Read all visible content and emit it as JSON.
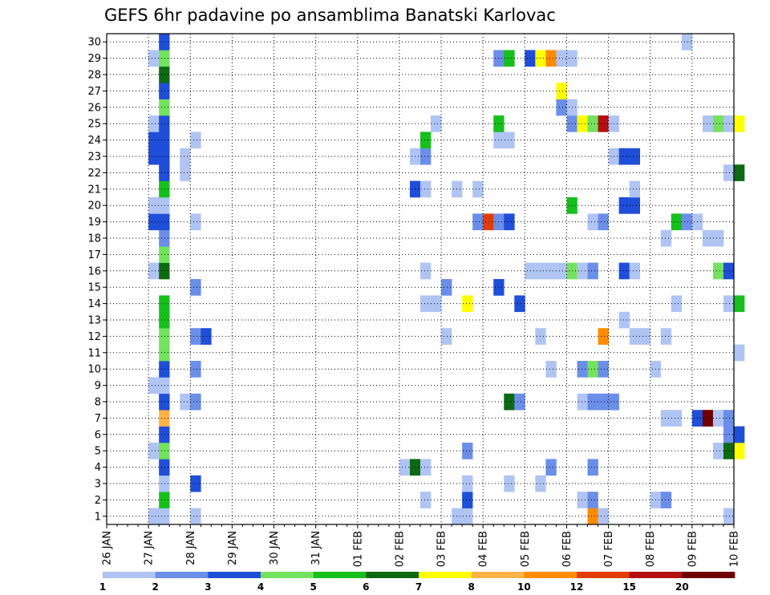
{
  "chart_data": {
    "type": "heatmap",
    "title": "GEFS 6hr padavine po ansamblima Banatski Karlovac",
    "xlabel": "",
    "ylabel": "",
    "x_tick_labels": [
      "26 JAN",
      "27 JAN",
      "28 JAN",
      "29 JAN",
      "30 JAN",
      "31 JAN",
      "01 FEB",
      "02 FEB",
      "03 FEB",
      "04 FEB",
      "05 FEB",
      "06 FEB",
      "07 FEB",
      "08 FEB",
      "09 FEB",
      "10 FEB"
    ],
    "y_tick_labels": [
      "1",
      "2",
      "3",
      "4",
      "5",
      "6",
      "7",
      "8",
      "9",
      "10",
      "11",
      "12",
      "13",
      "14",
      "15",
      "16",
      "17",
      "18",
      "19",
      "20",
      "21",
      "22",
      "23",
      "24",
      "25",
      "26",
      "27",
      "28",
      "29",
      "30"
    ],
    "member_range": [
      0,
      30
    ],
    "step_hours": 6,
    "grid": true,
    "legend_position": "bottom",
    "legend_values": [
      "1",
      "2",
      "3",
      "4",
      "5",
      "6",
      "7",
      "8",
      "10",
      "12",
      "15",
      "20"
    ],
    "legend_colors": [
      "#b0c4f4",
      "#6b8ee8",
      "#1f4ed8",
      "#74e25e",
      "#16c01c",
      "#0e6a12",
      "#ffff00",
      "#ffb347",
      "#ff8c00",
      "#e23c0b",
      "#b51010",
      "#6e0000"
    ],
    "cells": [
      {
        "m": 0,
        "s": 4,
        "c": 1
      },
      {
        "m": 0,
        "s": 5,
        "c": 1
      },
      {
        "m": 0,
        "s": 8,
        "c": 1
      },
      {
        "m": 0,
        "s": 33,
        "c": 1
      },
      {
        "m": 0,
        "s": 34,
        "c": 1
      },
      {
        "m": 0,
        "s": 46,
        "c": 9
      },
      {
        "m": 0,
        "s": 47,
        "c": 1
      },
      {
        "m": 0,
        "s": 59,
        "c": 1
      },
      {
        "m": 1,
        "s": 5,
        "c": 5
      },
      {
        "m": 1,
        "s": 30,
        "c": 1
      },
      {
        "m": 1,
        "s": 34,
        "c": 3
      },
      {
        "m": 1,
        "s": 45,
        "c": 1
      },
      {
        "m": 1,
        "s": 46,
        "c": 2
      },
      {
        "m": 1,
        "s": 52,
        "c": 1
      },
      {
        "m": 1,
        "s": 53,
        "c": 2
      },
      {
        "m": 2,
        "s": 5,
        "c": 1
      },
      {
        "m": 2,
        "s": 8,
        "c": 3
      },
      {
        "m": 2,
        "s": 34,
        "c": 1
      },
      {
        "m": 2,
        "s": 38,
        "c": 1
      },
      {
        "m": 2,
        "s": 41,
        "c": 1
      },
      {
        "m": 3,
        "s": 5,
        "c": 3
      },
      {
        "m": 3,
        "s": 28,
        "c": 1
      },
      {
        "m": 3,
        "s": 29,
        "c": 6
      },
      {
        "m": 3,
        "s": 30,
        "c": 1
      },
      {
        "m": 3,
        "s": 42,
        "c": 2
      },
      {
        "m": 3,
        "s": 46,
        "c": 2
      },
      {
        "m": 4,
        "s": 4,
        "c": 1
      },
      {
        "m": 4,
        "s": 5,
        "c": 4
      },
      {
        "m": 4,
        "s": 34,
        "c": 2
      },
      {
        "m": 4,
        "s": 58,
        "c": 1
      },
      {
        "m": 4,
        "s": 59,
        "c": 6
      },
      {
        "m": 4,
        "s": 60,
        "c": 7
      },
      {
        "m": 5,
        "s": 5,
        "c": 3
      },
      {
        "m": 5,
        "s": 59,
        "c": 2
      },
      {
        "m": 5,
        "s": 60,
        "c": 3
      },
      {
        "m": 6,
        "s": 5,
        "c": 8
      },
      {
        "m": 6,
        "s": 53,
        "c": 1
      },
      {
        "m": 6,
        "s": 54,
        "c": 1
      },
      {
        "m": 6,
        "s": 56,
        "c": 3
      },
      {
        "m": 6,
        "s": 57,
        "c": 12
      },
      {
        "m": 6,
        "s": 58,
        "c": 1
      },
      {
        "m": 6,
        "s": 59,
        "c": 2
      },
      {
        "m": 7,
        "s": 5,
        "c": 3
      },
      {
        "m": 7,
        "s": 7,
        "c": 1
      },
      {
        "m": 7,
        "s": 8,
        "c": 2
      },
      {
        "m": 7,
        "s": 38,
        "c": 6
      },
      {
        "m": 7,
        "s": 39,
        "c": 2
      },
      {
        "m": 7,
        "s": 45,
        "c": 1
      },
      {
        "m": 7,
        "s": 46,
        "c": 2
      },
      {
        "m": 7,
        "s": 47,
        "c": 2
      },
      {
        "m": 7,
        "s": 48,
        "c": 2
      },
      {
        "m": 8,
        "s": 4,
        "c": 1
      },
      {
        "m": 8,
        "s": 5,
        "c": 1
      },
      {
        "m": 9,
        "s": 5,
        "c": 3
      },
      {
        "m": 9,
        "s": 8,
        "c": 2
      },
      {
        "m": 9,
        "s": 42,
        "c": 1
      },
      {
        "m": 9,
        "s": 45,
        "c": 2
      },
      {
        "m": 9,
        "s": 46,
        "c": 4
      },
      {
        "m": 9,
        "s": 47,
        "c": 2
      },
      {
        "m": 9,
        "s": 52,
        "c": 1
      },
      {
        "m": 10,
        "s": 5,
        "c": 4
      },
      {
        "m": 10,
        "s": 60,
        "c": 1
      },
      {
        "m": 11,
        "s": 5,
        "c": 4
      },
      {
        "m": 11,
        "s": 8,
        "c": 2
      },
      {
        "m": 11,
        "s": 9,
        "c": 3
      },
      {
        "m": 11,
        "s": 32,
        "c": 1
      },
      {
        "m": 11,
        "s": 41,
        "c": 1
      },
      {
        "m": 11,
        "s": 47,
        "c": 9
      },
      {
        "m": 11,
        "s": 50,
        "c": 1
      },
      {
        "m": 11,
        "s": 51,
        "c": 1
      },
      {
        "m": 11,
        "s": 53,
        "c": 1
      },
      {
        "m": 12,
        "s": 5,
        "c": 5
      },
      {
        "m": 12,
        "s": 49,
        "c": 1
      },
      {
        "m": 13,
        "s": 5,
        "c": 5
      },
      {
        "m": 13,
        "s": 30,
        "c": 1
      },
      {
        "m": 13,
        "s": 31,
        "c": 1
      },
      {
        "m": 13,
        "s": 34,
        "c": 7
      },
      {
        "m": 13,
        "s": 39,
        "c": 3
      },
      {
        "m": 13,
        "s": 54,
        "c": 1
      },
      {
        "m": 13,
        "s": 59,
        "c": 1
      },
      {
        "m": 13,
        "s": 60,
        "c": 5
      },
      {
        "m": 14,
        "s": 8,
        "c": 2
      },
      {
        "m": 14,
        "s": 32,
        "c": 2
      },
      {
        "m": 14,
        "s": 37,
        "c": 3
      },
      {
        "m": 15,
        "s": 4,
        "c": 1
      },
      {
        "m": 15,
        "s": 5,
        "c": 6
      },
      {
        "m": 15,
        "s": 30,
        "c": 1
      },
      {
        "m": 15,
        "s": 40,
        "c": 1
      },
      {
        "m": 15,
        "s": 41,
        "c": 1
      },
      {
        "m": 15,
        "s": 42,
        "c": 1
      },
      {
        "m": 15,
        "s": 43,
        "c": 1
      },
      {
        "m": 15,
        "s": 44,
        "c": 4
      },
      {
        "m": 15,
        "s": 45,
        "c": 1
      },
      {
        "m": 15,
        "s": 46,
        "c": 2
      },
      {
        "m": 15,
        "s": 49,
        "c": 3
      },
      {
        "m": 15,
        "s": 50,
        "c": 1
      },
      {
        "m": 15,
        "s": 58,
        "c": 4
      },
      {
        "m": 15,
        "s": 59,
        "c": 3
      },
      {
        "m": 16,
        "s": 5,
        "c": 4
      },
      {
        "m": 17,
        "s": 5,
        "c": 2
      },
      {
        "m": 17,
        "s": 53,
        "c": 1
      },
      {
        "m": 17,
        "s": 57,
        "c": 1
      },
      {
        "m": 17,
        "s": 58,
        "c": 1
      },
      {
        "m": 18,
        "s": 4,
        "c": 3
      },
      {
        "m": 18,
        "s": 5,
        "c": 3
      },
      {
        "m": 18,
        "s": 8,
        "c": 1
      },
      {
        "m": 18,
        "s": 35,
        "c": 2
      },
      {
        "m": 18,
        "s": 36,
        "c": 10
      },
      {
        "m": 18,
        "s": 37,
        "c": 2
      },
      {
        "m": 18,
        "s": 38,
        "c": 3
      },
      {
        "m": 18,
        "s": 46,
        "c": 1
      },
      {
        "m": 18,
        "s": 47,
        "c": 2
      },
      {
        "m": 18,
        "s": 54,
        "c": 5
      },
      {
        "m": 18,
        "s": 55,
        "c": 2
      },
      {
        "m": 18,
        "s": 56,
        "c": 1
      },
      {
        "m": 19,
        "s": 4,
        "c": 1
      },
      {
        "m": 19,
        "s": 5,
        "c": 1
      },
      {
        "m": 19,
        "s": 44,
        "c": 5
      },
      {
        "m": 19,
        "s": 49,
        "c": 3
      },
      {
        "m": 19,
        "s": 50,
        "c": 3
      },
      {
        "m": 20,
        "s": 5,
        "c": 5
      },
      {
        "m": 20,
        "s": 29,
        "c": 3
      },
      {
        "m": 20,
        "s": 30,
        "c": 1
      },
      {
        "m": 20,
        "s": 33,
        "c": 1
      },
      {
        "m": 20,
        "s": 35,
        "c": 1
      },
      {
        "m": 20,
        "s": 50,
        "c": 1
      },
      {
        "m": 21,
        "s": 5,
        "c": 3
      },
      {
        "m": 21,
        "s": 7,
        "c": 1
      },
      {
        "m": 21,
        "s": 59,
        "c": 1
      },
      {
        "m": 21,
        "s": 60,
        "c": 6
      },
      {
        "m": 22,
        "s": 4,
        "c": 3
      },
      {
        "m": 22,
        "s": 5,
        "c": 3
      },
      {
        "m": 22,
        "s": 7,
        "c": 1
      },
      {
        "m": 22,
        "s": 29,
        "c": 1
      },
      {
        "m": 22,
        "s": 30,
        "c": 2
      },
      {
        "m": 22,
        "s": 48,
        "c": 1
      },
      {
        "m": 22,
        "s": 49,
        "c": 3
      },
      {
        "m": 22,
        "s": 50,
        "c": 3
      },
      {
        "m": 23,
        "s": 4,
        "c": 3
      },
      {
        "m": 23,
        "s": 5,
        "c": 3
      },
      {
        "m": 23,
        "s": 8,
        "c": 1
      },
      {
        "m": 23,
        "s": 30,
        "c": 5
      },
      {
        "m": 23,
        "s": 37,
        "c": 1
      },
      {
        "m": 23,
        "s": 38,
        "c": 1
      },
      {
        "m": 24,
        "s": 4,
        "c": 1
      },
      {
        "m": 24,
        "s": 5,
        "c": 3
      },
      {
        "m": 24,
        "s": 31,
        "c": 1
      },
      {
        "m": 24,
        "s": 37,
        "c": 5
      },
      {
        "m": 24,
        "s": 44,
        "c": 2
      },
      {
        "m": 24,
        "s": 45,
        "c": 7
      },
      {
        "m": 24,
        "s": 46,
        "c": 4
      },
      {
        "m": 24,
        "s": 47,
        "c": 11
      },
      {
        "m": 24,
        "s": 48,
        "c": 1
      },
      {
        "m": 24,
        "s": 57,
        "c": 1
      },
      {
        "m": 24,
        "s": 58,
        "c": 4
      },
      {
        "m": 24,
        "s": 59,
        "c": 1
      },
      {
        "m": 24,
        "s": 60,
        "c": 7
      },
      {
        "m": 25,
        "s": 5,
        "c": 4
      },
      {
        "m": 25,
        "s": 43,
        "c": 2
      },
      {
        "m": 25,
        "s": 44,
        "c": 1
      },
      {
        "m": 26,
        "s": 5,
        "c": 3
      },
      {
        "m": 26,
        "s": 43,
        "c": 7
      },
      {
        "m": 27,
        "s": 5,
        "c": 6
      },
      {
        "m": 28,
        "s": 4,
        "c": 1
      },
      {
        "m": 28,
        "s": 5,
        "c": 4
      },
      {
        "m": 28,
        "s": 37,
        "c": 2
      },
      {
        "m": 28,
        "s": 38,
        "c": 5
      },
      {
        "m": 28,
        "s": 40,
        "c": 3
      },
      {
        "m": 28,
        "s": 41,
        "c": 7
      },
      {
        "m": 28,
        "s": 42,
        "c": 9
      },
      {
        "m": 28,
        "s": 43,
        "c": 1
      },
      {
        "m": 28,
        "s": 44,
        "c": 1
      },
      {
        "m": 29,
        "s": 5,
        "c": 3
      },
      {
        "m": 29,
        "s": 55,
        "c": 1
      }
    ]
  }
}
